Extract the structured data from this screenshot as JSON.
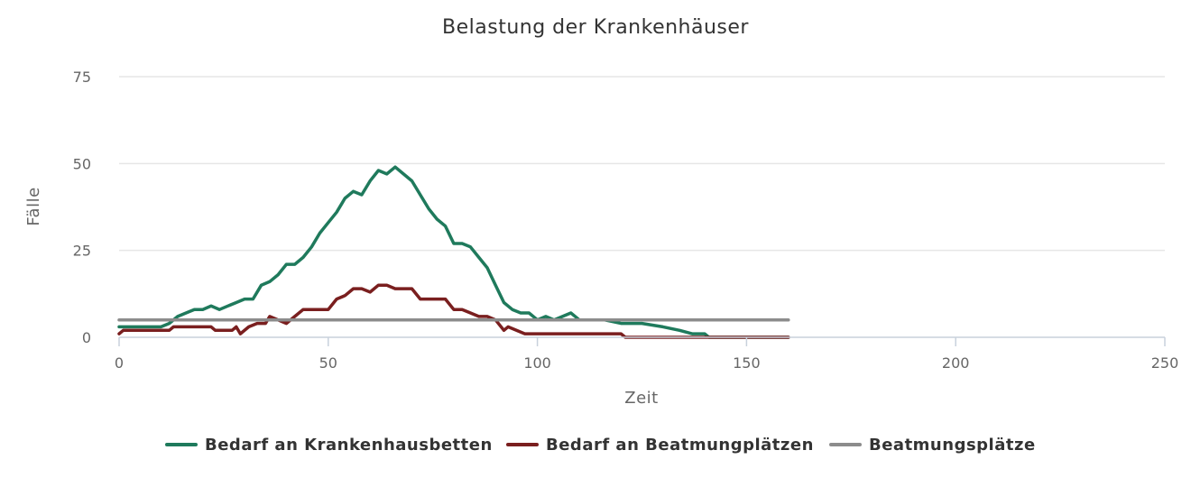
{
  "chart_data": {
    "type": "line",
    "title": "Belastung der Krankenhäuser",
    "xlabel": "Zeit",
    "ylabel": "Fälle",
    "xlim": [
      0,
      250
    ],
    "ylim": [
      0,
      75
    ],
    "x_ticks": [
      "0",
      "50",
      "100",
      "150",
      "200",
      "250"
    ],
    "y_ticks": [
      "0",
      "25",
      "50",
      "75"
    ],
    "grid": true,
    "legend_position": "bottom",
    "series": [
      {
        "name": "Bedarf an Krankenhausbetten",
        "color": "#1f7a5c",
        "x": [
          0,
          2,
          4,
          6,
          8,
          10,
          12,
          14,
          16,
          18,
          20,
          22,
          24,
          26,
          28,
          30,
          32,
          34,
          36,
          38,
          40,
          42,
          44,
          46,
          48,
          50,
          52,
          54,
          56,
          58,
          60,
          62,
          64,
          66,
          68,
          70,
          72,
          74,
          76,
          78,
          80,
          82,
          84,
          86,
          88,
          90,
          92,
          94,
          96,
          98,
          100,
          102,
          104,
          106,
          108,
          110,
          112,
          116,
          120,
          125,
          130,
          134,
          137,
          140,
          141,
          150,
          160
        ],
        "values": [
          3,
          3,
          3,
          3,
          3,
          3,
          4,
          6,
          7,
          8,
          8,
          9,
          8,
          9,
          10,
          11,
          11,
          15,
          16,
          18,
          21,
          21,
          23,
          26,
          30,
          33,
          36,
          40,
          42,
          41,
          45,
          48,
          47,
          49,
          47,
          45,
          41,
          37,
          34,
          32,
          27,
          27,
          26,
          23,
          20,
          15,
          10,
          8,
          7,
          7,
          5,
          6,
          5,
          6,
          7,
          5,
          5,
          5,
          4,
          4,
          3,
          2,
          1,
          1,
          0,
          0,
          0
        ]
      },
      {
        "name": "Bedarf an Beatmungplätzen",
        "color": "#7a1f1f",
        "x": [
          0,
          1,
          3,
          6,
          10,
          12,
          13,
          15,
          18,
          22,
          23,
          25,
          27,
          28,
          29,
          31,
          33,
          35,
          36,
          38,
          40,
          42,
          44,
          46,
          48,
          50,
          52,
          54,
          56,
          58,
          60,
          62,
          64,
          66,
          68,
          70,
          72,
          74,
          76,
          78,
          80,
          82,
          84,
          86,
          88,
          90,
          92,
          93,
          95,
          97,
          100,
          105,
          110,
          115,
          120,
          121,
          125,
          130,
          140,
          150,
          160
        ],
        "values": [
          1,
          2,
          2,
          2,
          2,
          2,
          3,
          3,
          3,
          3,
          2,
          2,
          2,
          3,
          1,
          3,
          4,
          4,
          6,
          5,
          4,
          6,
          8,
          8,
          8,
          8,
          11,
          12,
          14,
          14,
          13,
          15,
          15,
          14,
          14,
          14,
          11,
          11,
          11,
          11,
          8,
          8,
          7,
          6,
          6,
          5,
          2,
          3,
          2,
          1,
          1,
          1,
          1,
          1,
          1,
          0,
          0,
          0,
          0,
          0,
          0
        ]
      },
      {
        "name": "Beatmungsplätze",
        "color": "#8c8c8c",
        "x": [
          0,
          160
        ],
        "values": [
          5,
          5
        ]
      }
    ]
  }
}
